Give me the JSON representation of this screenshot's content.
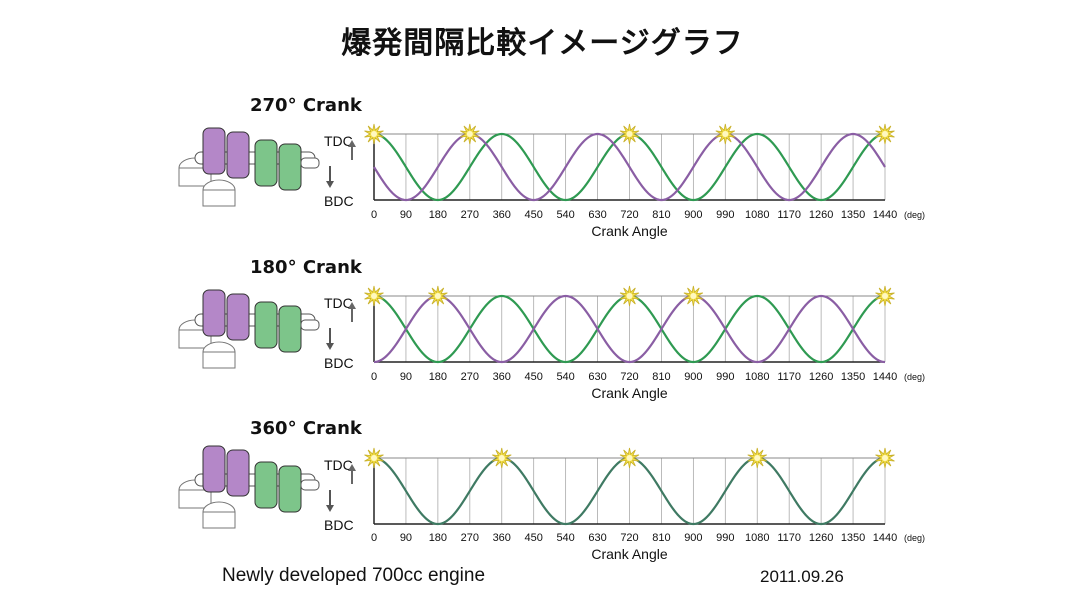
{
  "title": "爆発間隔比較イメージグラフ",
  "footer": {
    "left": "Newly developed 700cc engine",
    "right": "2011.09.26"
  },
  "colors": {
    "purple": "#8a5ea4",
    "green": "#2f9a52",
    "overlap": "#3f7a63",
    "star": "#f4e04a",
    "grid": "#aaaaaa",
    "purple_fill": "#b487c8",
    "green_fill": "#7dc58a"
  },
  "labels": {
    "tdc": "TDC",
    "bdc": "BDC",
    "xlabel": "Crank Angle",
    "unit": "(deg)"
  },
  "chart_data": [
    {
      "type": "line",
      "title": "270° Crank",
      "xlabel": "Crank Angle",
      "xlim": [
        0,
        1440
      ],
      "x_ticks": [
        0,
        90,
        180,
        270,
        360,
        450,
        540,
        630,
        720,
        810,
        900,
        990,
        1080,
        1170,
        1260,
        1350,
        1440
      ],
      "ylim": [
        "BDC",
        "TDC"
      ],
      "series": [
        {
          "color": "#2f9a52",
          "tdc_at": [
            0,
            360,
            720,
            1080,
            1440
          ]
        },
        {
          "color": "#8a5ea4",
          "tdc_at": [
            270,
            630,
            990,
            1350
          ]
        }
      ],
      "firing_deg": [
        0,
        270,
        720,
        990,
        1440
      ]
    },
    {
      "type": "line",
      "title": "180° Crank",
      "xlabel": "Crank Angle",
      "xlim": [
        0,
        1440
      ],
      "x_ticks": [
        0,
        90,
        180,
        270,
        360,
        450,
        540,
        630,
        720,
        810,
        900,
        990,
        1080,
        1170,
        1260,
        1350,
        1440
      ],
      "ylim": [
        "BDC",
        "TDC"
      ],
      "series": [
        {
          "color": "#2f9a52",
          "tdc_at": [
            0,
            360,
            720,
            1080,
            1440
          ]
        },
        {
          "color": "#8a5ea4",
          "tdc_at": [
            180,
            540,
            900,
            1260
          ]
        }
      ],
      "firing_deg": [
        0,
        180,
        720,
        900,
        1440
      ]
    },
    {
      "type": "line",
      "title": "360° Crank",
      "xlabel": "Crank Angle",
      "xlim": [
        0,
        1440
      ],
      "x_ticks": [
        0,
        90,
        180,
        270,
        360,
        450,
        540,
        630,
        720,
        810,
        900,
        990,
        1080,
        1170,
        1260,
        1350,
        1440
      ],
      "ylim": [
        "BDC",
        "TDC"
      ],
      "series": [
        {
          "color": "#3f7a63",
          "tdc_at": [
            0,
            360,
            720,
            1080,
            1440
          ]
        }
      ],
      "firing_deg": [
        0,
        360,
        720,
        1080,
        1440
      ]
    }
  ]
}
